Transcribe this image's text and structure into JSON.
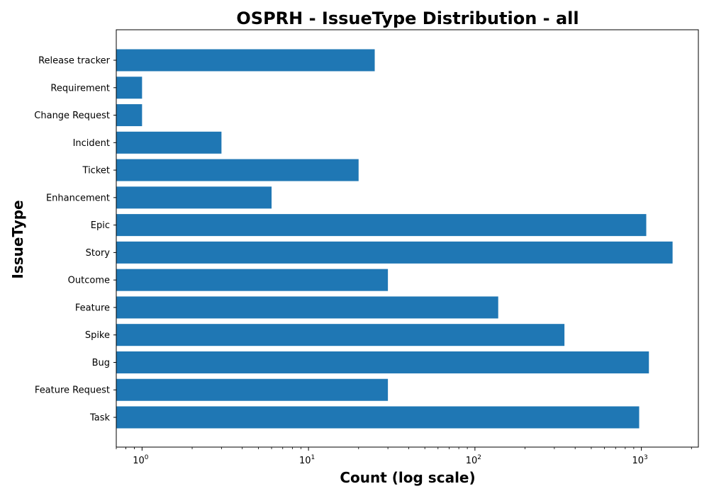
{
  "chart_data": {
    "type": "bar",
    "orientation": "horizontal",
    "title": "OSPRH - IssueType Distribution - all",
    "xlabel": "Count (log scale)",
    "ylabel": "IssueType",
    "xscale": "log",
    "xlim": [
      0.7,
      2200
    ],
    "x_ticks": [
      {
        "value": 1,
        "base": "10",
        "exp": "0"
      },
      {
        "value": 10,
        "base": "10",
        "exp": "1"
      },
      {
        "value": 100,
        "base": "10",
        "exp": "2"
      },
      {
        "value": 1000,
        "base": "10",
        "exp": "3"
      }
    ],
    "categories": [
      "Task",
      "Feature Request",
      "Bug",
      "Spike",
      "Feature",
      "Outcome",
      "Story",
      "Epic",
      "Enhancement",
      "Ticket",
      "Incident",
      "Change Request",
      "Requirement",
      "Release tracker"
    ],
    "values": [
      970,
      30,
      1110,
      345,
      138,
      30,
      1540,
      1070,
      6,
      20,
      3,
      1,
      1,
      25
    ],
    "bar_color": "#1f77b4",
    "grid": false,
    "legend": null
  }
}
